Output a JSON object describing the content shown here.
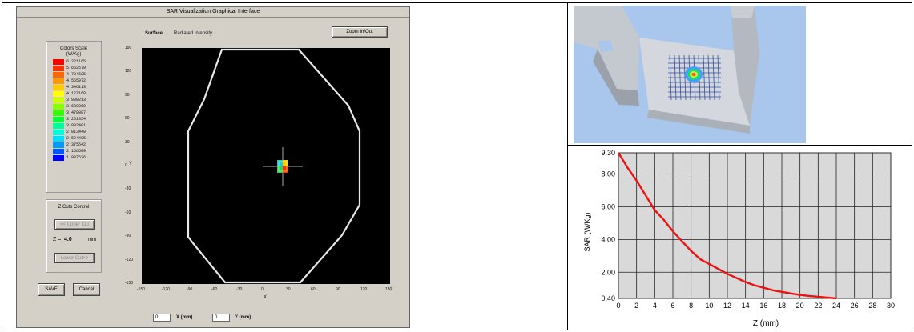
{
  "window": {
    "title": "SAR Visualization Graphical Interface",
    "surface_label": "Surface",
    "surface_value": "Radiated Intensity",
    "zoom_button": "Zoom In/Out"
  },
  "color_scale": {
    "title": "Colors Scale",
    "unit": "(W/Kg)",
    "entries": [
      {
        "value": "6.221165",
        "color": "#ff0000"
      },
      {
        "value": "5.662579",
        "color": "#ff3300"
      },
      {
        "value": "4.784625",
        "color": "#ff6600"
      },
      {
        "value": "4.565072",
        "color": "#ff9900"
      },
      {
        "value": "4.346113",
        "color": "#ffcc00"
      },
      {
        "value": "4.127168",
        "color": "#ffff00"
      },
      {
        "value": "3.908213",
        "color": "#ccff00"
      },
      {
        "value": "3.689260",
        "color": "#88ff00"
      },
      {
        "value": "3.470307",
        "color": "#33ff00"
      },
      {
        "value": "3.251354",
        "color": "#00ff33"
      },
      {
        "value": "3.032401",
        "color": "#00ff99"
      },
      {
        "value": "2.813448",
        "color": "#00ffdd"
      },
      {
        "value": "2.594495",
        "color": "#00ddff"
      },
      {
        "value": "2.375542",
        "color": "#0099ff"
      },
      {
        "value": "2.156589",
        "color": "#0055ff"
      },
      {
        "value": "1.937636",
        "color": "#0000ff"
      }
    ]
  },
  "zcut": {
    "title": "Z Cuts Control",
    "upper_button": "<< Upper Cut",
    "z_label": "Z =",
    "z_value": "4.0",
    "z_unit": "mm",
    "lower_button": "Lower Cut>>"
  },
  "actions": {
    "save": "SAVE",
    "cancel": "Cancel"
  },
  "coords": {
    "x_value": "0",
    "x_label": "X (mm)",
    "y_value": "0",
    "y_label": "Y (mm)"
  },
  "plot": {
    "x_axis_label": "X",
    "y_axis_label": "Y",
    "x_ticks": [
      "-150",
      "-120",
      "-90",
      "-60",
      "-30",
      "0",
      "30",
      "60",
      "90",
      "120",
      "150"
    ],
    "y_ticks": [
      "150",
      "120",
      "90",
      "60",
      "30",
      "0",
      "-30",
      "-60",
      "-90",
      "-120",
      "-150"
    ]
  },
  "chart_data": {
    "type": "line",
    "xlabel": "Z (mm)",
    "ylabel": "SAR (W/Kg)",
    "xlim": [
      0,
      30
    ],
    "ylim": [
      0.4,
      9.3
    ],
    "x_ticks": [
      "0",
      "2",
      "4",
      "6",
      "8",
      "10",
      "12",
      "14",
      "16",
      "18",
      "20",
      "22",
      "24",
      "26",
      "28",
      "30"
    ],
    "y_ticks": [
      {
        "value": 9.3,
        "label": "9.30"
      },
      {
        "value": 8.0,
        "label": "8.00"
      },
      {
        "value": 6.0,
        "label": "6.00"
      },
      {
        "value": 4.0,
        "label": "4.00"
      },
      {
        "value": 2.0,
        "label": "2.00"
      },
      {
        "value": 0.4,
        "label": "0.40"
      }
    ],
    "grid": true,
    "colors": {
      "line": "#ee1111",
      "background": "#d9d9d9"
    },
    "series": [
      {
        "x": [
          0,
          1,
          2,
          3,
          4,
          5,
          6,
          7,
          8,
          9,
          10,
          11,
          12,
          13,
          14,
          15,
          16,
          17,
          18,
          19,
          20,
          21,
          22,
          23,
          24
        ],
        "values": [
          9.3,
          8.4,
          7.6,
          6.7,
          5.8,
          5.2,
          4.5,
          3.9,
          3.3,
          2.8,
          2.5,
          2.2,
          1.9,
          1.65,
          1.4,
          1.2,
          1.05,
          0.9,
          0.8,
          0.7,
          0.62,
          0.55,
          0.5,
          0.45,
          0.4
        ]
      }
    ]
  }
}
